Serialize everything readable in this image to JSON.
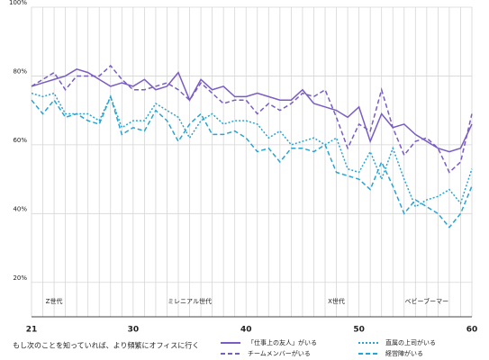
{
  "chart_data": {
    "type": "line",
    "x_label": "もし次のことを知っていれば、より頻繁にオフィスに行く",
    "x": [
      21,
      22,
      23,
      24,
      25,
      26,
      27,
      28,
      29,
      30,
      31,
      32,
      33,
      34,
      35,
      36,
      37,
      38,
      39,
      40,
      41,
      42,
      43,
      44,
      45,
      46,
      47,
      48,
      49,
      50,
      51,
      52,
      53,
      54,
      55,
      56,
      57,
      58,
      59,
      60
    ],
    "xlim": [
      21,
      60
    ],
    "xticks": [
      21,
      30,
      40,
      50,
      60
    ],
    "ylim": [
      10,
      100
    ],
    "yticks": [
      {
        "value": 20,
        "label": "20%"
      },
      {
        "value": 40,
        "label": "40%"
      },
      {
        "value": 60,
        "label": "60%"
      },
      {
        "value": 80,
        "label": "80%"
      },
      {
        "value": 100,
        "label": "100%"
      }
    ],
    "grid": true,
    "legend": "bottom",
    "annotations": [
      {
        "text": "Z世代",
        "x": 23
      },
      {
        "text": "ミレニアル世代",
        "x": 35
      },
      {
        "text": "X世代",
        "x": 48
      },
      {
        "text": "ベビーブーマー",
        "x": 56
      }
    ],
    "series": [
      {
        "name": "「仕事上の友人」がいる",
        "color": "#7b5cc4",
        "dash": "solid",
        "values": [
          77,
          78,
          79,
          80,
          82,
          81,
          79,
          77,
          78,
          77,
          79,
          76,
          77,
          81,
          73,
          79,
          76,
          77,
          74,
          74,
          75,
          74,
          73,
          73,
          76,
          72,
          71,
          70,
          68,
          71,
          61,
          69,
          65,
          66,
          63,
          61,
          59,
          58,
          59,
          66
        ]
      },
      {
        "name": "チームメンバーがいる",
        "color": "#7b5cc4",
        "dash": "dashed",
        "values": [
          77,
          79,
          81,
          76,
          80,
          80,
          80,
          83,
          79,
          76,
          76,
          77,
          78,
          76,
          73,
          78,
          75,
          72,
          73,
          73,
          69,
          72,
          70,
          72,
          75,
          74,
          76,
          68,
          59,
          66,
          64,
          76,
          65,
          57,
          61,
          62,
          59,
          52,
          55,
          69
        ]
      },
      {
        "name": "直属の上司がいる",
        "color": "#2aa3d0",
        "dash": "dotted",
        "values": [
          75,
          74,
          75,
          69,
          69,
          69,
          67,
          74,
          65,
          67,
          67,
          72,
          70,
          68,
          62,
          67,
          69,
          66,
          67,
          67,
          66,
          62,
          64,
          60,
          61,
          62,
          60,
          62,
          53,
          52,
          58,
          50,
          59,
          50,
          42,
          44,
          45,
          47,
          43,
          53
        ]
      },
      {
        "name": "経営陣がいる",
        "color": "#2aa3d0",
        "dash": "dashed",
        "values": [
          73,
          69,
          73,
          68,
          69,
          67,
          66,
          74,
          63,
          65,
          64,
          70,
          67,
          61,
          66,
          69,
          63,
          63,
          64,
          62,
          58,
          59,
          55,
          59,
          59,
          58,
          60,
          52,
          51,
          50,
          47,
          55,
          48,
          40,
          44,
          42,
          40,
          36,
          40,
          48
        ]
      }
    ]
  }
}
